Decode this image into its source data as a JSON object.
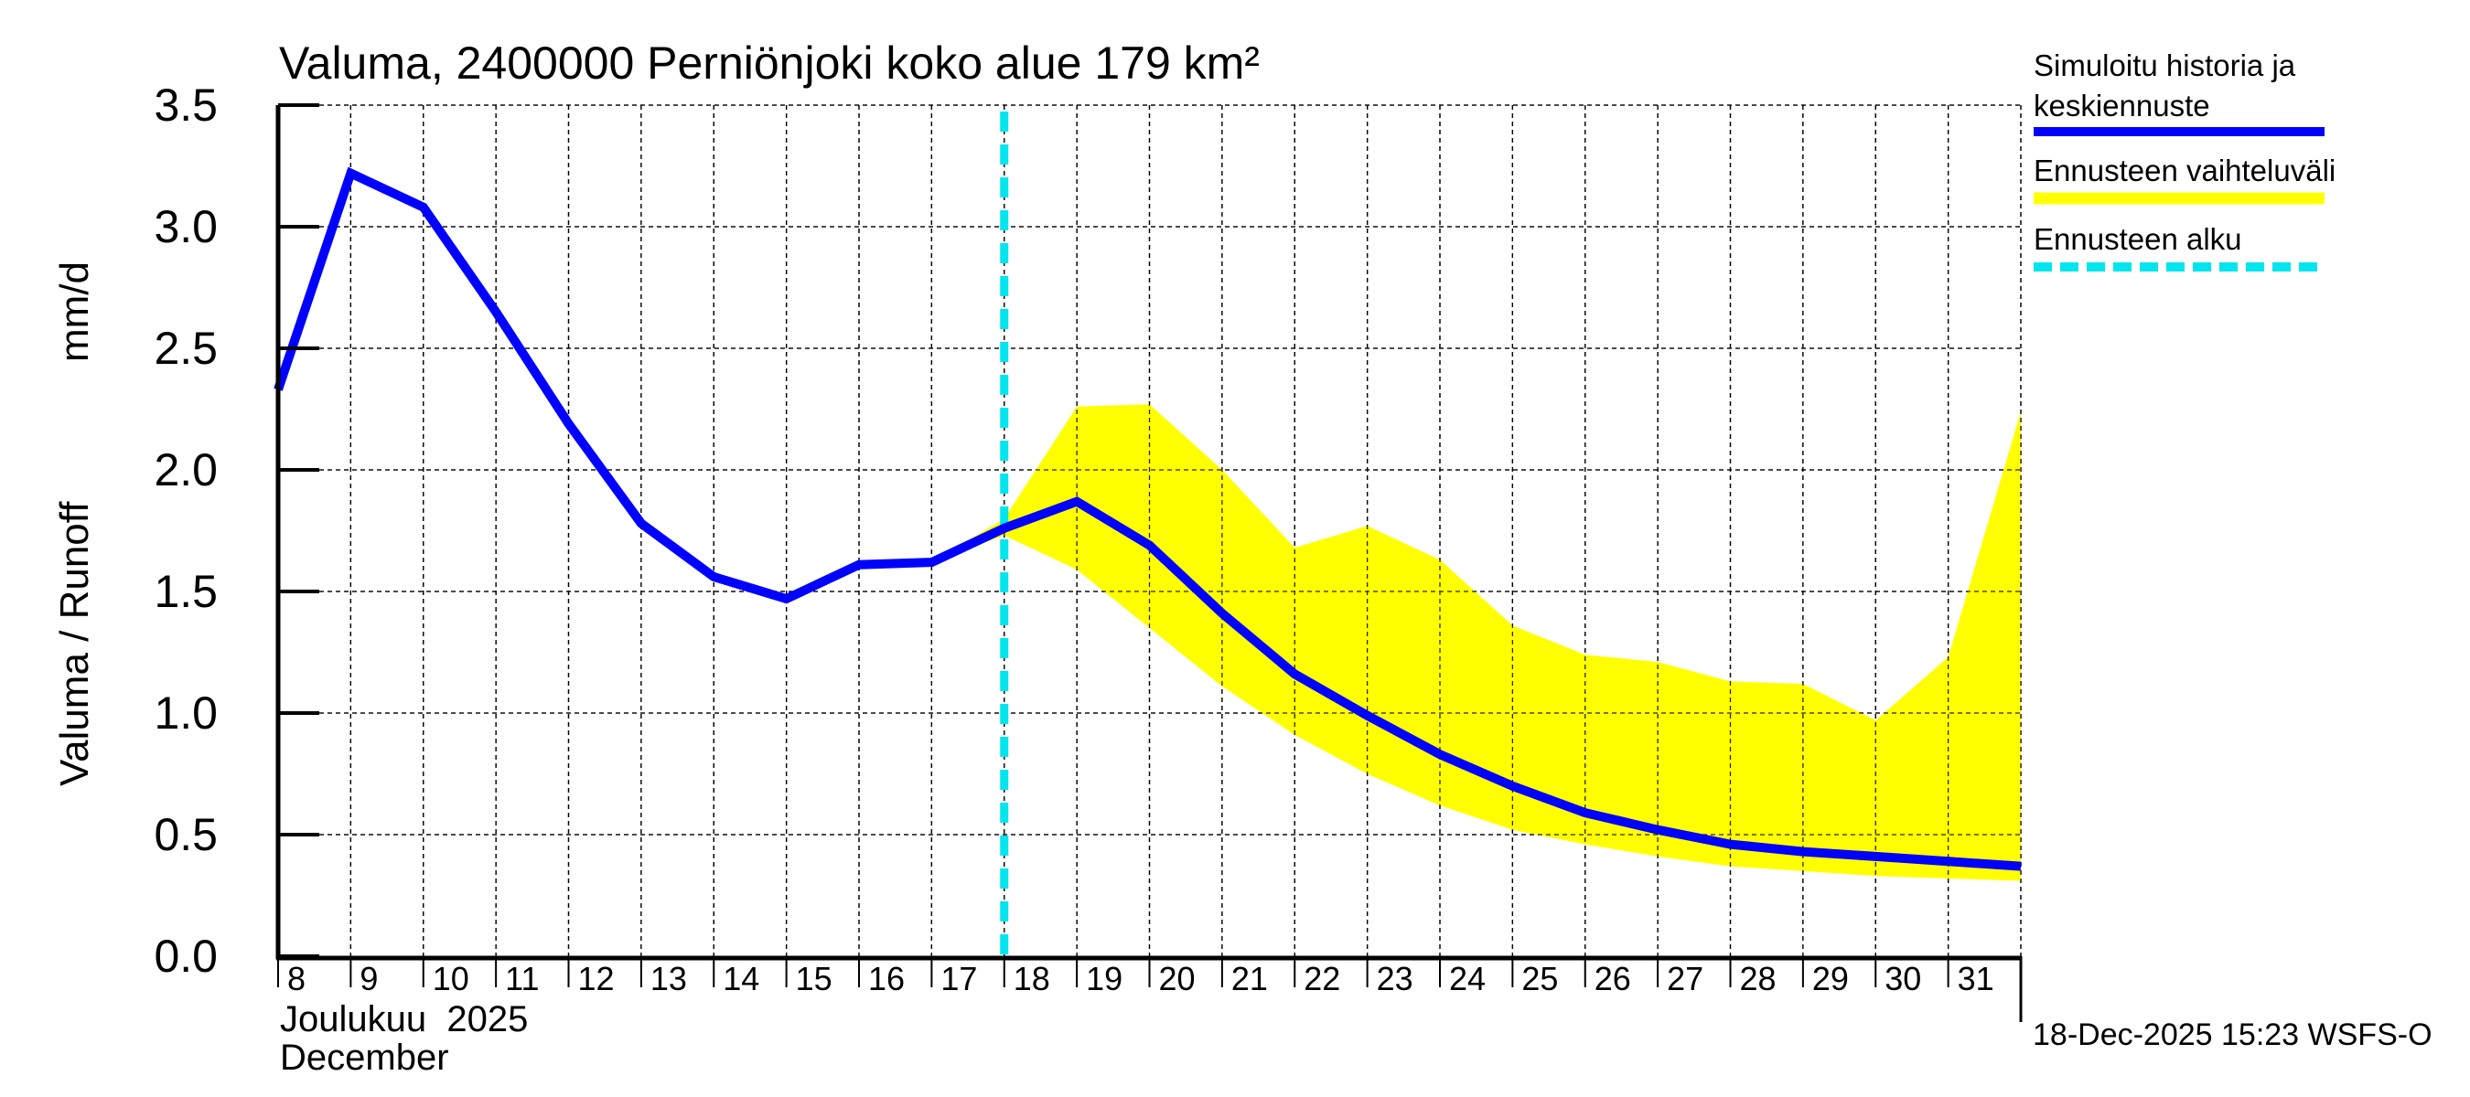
{
  "chart_data": {
    "type": "line",
    "title": "Valuma, 2400000 Perniönjoki koko alue 179 km²",
    "ylabel_left": "Valuma / Runoff",
    "ylabel_unit": "mm/d",
    "xlabel_month_fi": "Joulukuu  2025",
    "xlabel_month_en": "December",
    "timestamp": "18-Dec-2025 15:23 WSFS-O",
    "ylim": [
      0,
      3.5
    ],
    "yticks": [
      "0.0",
      "0.5",
      "1.0",
      "1.5",
      "2.0",
      "2.5",
      "3.0",
      "3.5"
    ],
    "ytick_values": [
      0,
      0.5,
      1.0,
      1.5,
      2.0,
      2.5,
      3.0,
      3.5
    ],
    "xlim_days": [
      0,
      24
    ],
    "xtick_labels": [
      "8",
      "9",
      "10",
      "11",
      "12",
      "13",
      "14",
      "15",
      "16",
      "17",
      "18",
      "19",
      "20",
      "21",
      "22",
      "23",
      "24",
      "25",
      "26",
      "27",
      "28",
      "29",
      "30",
      "31"
    ],
    "grid": true,
    "forecast_start_day_index": 10,
    "legend_position": "right",
    "legend": [
      {
        "label_line1": "Simuloitu historia ja",
        "label_line2": "keskiennuste",
        "color": "#0000ff",
        "style": "solid"
      },
      {
        "label_line1": "Ennusteen vaihteluväli",
        "color": "#ffff00",
        "style": "band"
      },
      {
        "label_line1": "Ennusteen alku",
        "color": "#00e5ee",
        "style": "dashed"
      }
    ],
    "series": [
      {
        "name": "Simuloitu historia ja keskiennuste",
        "color": "#0000ff",
        "x": [
          0,
          1,
          2,
          3,
          4,
          5,
          6,
          7,
          8,
          9,
          10,
          11,
          12,
          13,
          14,
          15,
          16,
          17,
          18,
          19,
          20,
          21,
          22,
          23,
          24
        ],
        "values": [
          2.33,
          3.22,
          3.08,
          2.65,
          2.19,
          1.78,
          1.56,
          1.47,
          1.61,
          1.62,
          1.76,
          1.87,
          1.69,
          1.41,
          1.16,
          0.99,
          0.83,
          0.7,
          0.59,
          0.52,
          0.46,
          0.43,
          0.41,
          0.39,
          0.37
        ]
      },
      {
        "name": "Ennusteen vaihteluväli",
        "color": "#ffff00",
        "x": [
          9,
          10,
          11,
          12,
          13,
          14,
          15,
          16,
          17,
          18,
          19,
          20,
          21,
          22,
          23,
          24
        ],
        "upper": [
          1.62,
          1.8,
          2.26,
          2.27,
          2.0,
          1.68,
          1.77,
          1.63,
          1.36,
          1.24,
          1.21,
          1.13,
          1.12,
          0.97,
          1.23,
          2.24
        ],
        "lower": [
          1.62,
          1.73,
          1.59,
          1.35,
          1.11,
          0.91,
          0.75,
          0.62,
          0.52,
          0.46,
          0.41,
          0.37,
          0.35,
          0.33,
          0.32,
          0.31
        ]
      }
    ]
  }
}
